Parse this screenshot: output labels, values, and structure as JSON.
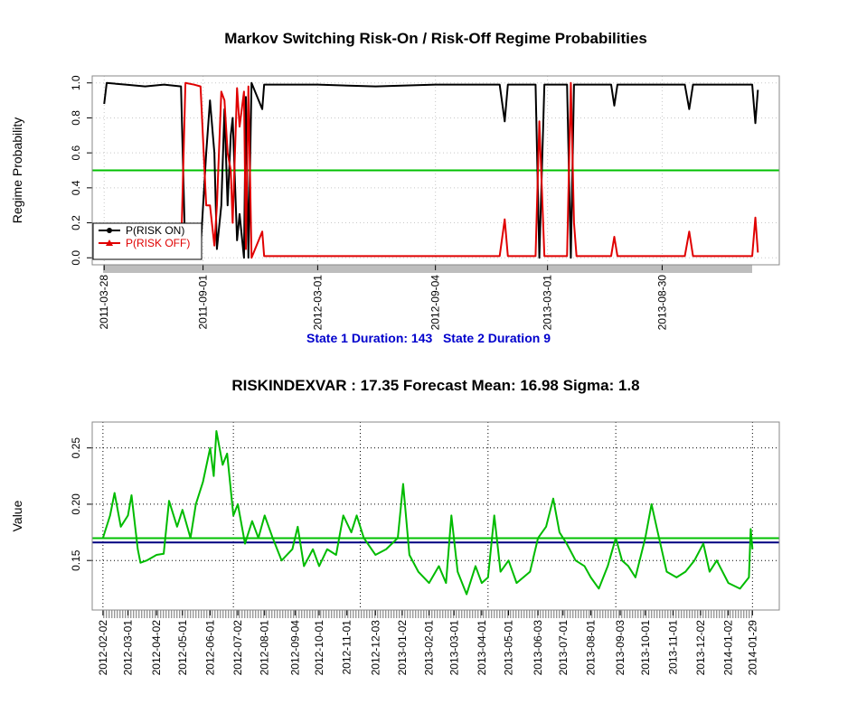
{
  "chart_data": [
    {
      "type": "line",
      "title": "Markov Switching Risk-On / Risk-Off Regime Probabilities",
      "ylabel": "Regime Probability",
      "annotation": "State 1 Duration: 143   State 2 Duration 9",
      "annotation_color": "#0000cc",
      "x": [
        "2011-03-28",
        "2011-04-01",
        "2011-05-01",
        "2011-06-01",
        "2011-07-01",
        "2011-07-28",
        "2011-08-04",
        "2011-08-18",
        "2011-08-28",
        "2011-09-06",
        "2011-09-12",
        "2011-09-19",
        "2011-09-23",
        "2011-09-30",
        "2011-10-05",
        "2011-10-10",
        "2011-10-15",
        "2011-10-18",
        "2011-10-25",
        "2011-10-29",
        "2011-11-05",
        "2011-11-08",
        "2011-11-12",
        "2011-11-17",
        "2011-12-04",
        "2011-12-07",
        "2012-03-01",
        "2012-06-01",
        "2012-09-04",
        "2012-12-15",
        "2012-12-23",
        "2012-12-28",
        "2013-02-10",
        "2013-02-16",
        "2013-02-24",
        "2013-04-01",
        "2013-04-07",
        "2013-04-12",
        "2013-04-16",
        "2013-06-10",
        "2013-06-15",
        "2013-06-20",
        "2013-10-05",
        "2013-10-12",
        "2013-10-18",
        "2014-01-20",
        "2014-01-25",
        "2014-01-29"
      ],
      "series": [
        {
          "name": "P(RISK ON)",
          "color": "#000000",
          "marker": "circle",
          "values": [
            0.88,
            1.0,
            0.99,
            0.98,
            0.99,
            0.98,
            0.0,
            0.02,
            0.05,
            0.6,
            0.9,
            0.6,
            0.05,
            0.3,
            0.85,
            0.3,
            0.7,
            0.8,
            0.1,
            0.25,
            0.0,
            0.92,
            0.0,
            1.0,
            0.85,
            0.99,
            0.99,
            0.98,
            0.99,
            0.99,
            0.78,
            0.99,
            0.99,
            0.0,
            0.99,
            0.99,
            0.0,
            0.99,
            0.99,
            0.99,
            0.87,
            0.99,
            0.99,
            0.85,
            0.99,
            0.99,
            0.77,
            0.96
          ]
        },
        {
          "name": "P(RISK OFF)",
          "color": "#e00000",
          "marker": "triangle",
          "values": [
            0.12,
            0.0,
            0.01,
            0.02,
            0.01,
            0.02,
            1.0,
            0.99,
            0.98,
            0.3,
            0.3,
            0.07,
            0.3,
            0.95,
            0.9,
            0.6,
            0.5,
            0.2,
            0.97,
            0.75,
            0.95,
            0.05,
            0.98,
            0.0,
            0.15,
            0.01,
            0.01,
            0.01,
            0.01,
            0.01,
            0.22,
            0.01,
            0.01,
            0.78,
            0.01,
            0.01,
            1.0,
            0.2,
            0.01,
            0.01,
            0.12,
            0.01,
            0.01,
            0.15,
            0.01,
            0.01,
            0.23,
            0.03
          ]
        }
      ],
      "reference_lines": [
        {
          "value": 0.5,
          "color": "#00c000"
        }
      ],
      "xlim": [
        "2011-03-09",
        "2014-03-04"
      ],
      "xticks": [
        "2011-03-28",
        "2011-09-01",
        "2012-03-01",
        "2012-09-04",
        "2013-03-01",
        "2013-08-30"
      ],
      "ylim": [
        -0.04,
        1.04
      ],
      "yticks": [
        {
          "value": 0,
          "label": "0.0"
        },
        0.2,
        0.4,
        0.6,
        0.8,
        {
          "value": 1,
          "label": "1.0"
        }
      ],
      "grid": true,
      "grid_color": "#c8c8c8",
      "legend": "bottomleft"
    },
    {
      "type": "line",
      "title": "RISKINDEXVAR :  17.35 Forecast Mean: 16.98  Sigma: 1.8",
      "ylabel": "Value",
      "x": [
        "2012-02-02",
        "2012-02-10",
        "2012-02-15",
        "2012-02-22",
        "2012-03-01",
        "2012-03-05",
        "2012-03-12",
        "2012-03-15",
        "2012-03-22",
        "2012-04-02",
        "2012-04-10",
        "2012-04-16",
        "2012-04-25",
        "2012-05-01",
        "2012-05-10",
        "2012-05-16",
        "2012-05-24",
        "2012-06-01",
        "2012-06-05",
        "2012-06-08",
        "2012-06-15",
        "2012-06-20",
        "2012-06-27",
        "2012-07-02",
        "2012-07-10",
        "2012-07-18",
        "2012-07-25",
        "2012-08-01",
        "2012-08-10",
        "2012-08-20",
        "2012-09-01",
        "2012-09-07",
        "2012-09-14",
        "2012-09-24",
        "2012-10-01",
        "2012-10-10",
        "2012-10-20",
        "2012-10-28",
        "2012-11-06",
        "2012-11-12",
        "2012-11-20",
        "2012-12-03",
        "2012-12-15",
        "2012-12-28",
        "2013-01-03",
        "2013-01-10",
        "2013-01-20",
        "2013-02-01",
        "2013-02-12",
        "2013-02-20",
        "2013-02-26",
        "2013-03-05",
        "2013-03-15",
        "2013-03-25",
        "2013-04-01",
        "2013-04-08",
        "2013-04-15",
        "2013-04-22",
        "2013-05-01",
        "2013-05-10",
        "2013-05-25",
        "2013-06-03",
        "2013-06-12",
        "2013-06-20",
        "2013-06-27",
        "2013-07-05",
        "2013-07-15",
        "2013-07-25",
        "2013-08-01",
        "2013-08-10",
        "2013-08-20",
        "2013-08-29",
        "2013-09-05",
        "2013-09-12",
        "2013-09-20",
        "2013-10-01",
        "2013-10-08",
        "2013-10-15",
        "2013-10-25",
        "2013-11-05",
        "2013-11-15",
        "2013-11-25",
        "2013-12-05",
        "2013-12-12",
        "2013-12-20",
        "2014-01-02",
        "2014-01-15",
        "2014-01-25",
        "2014-01-27",
        "2014-01-29"
      ],
      "series": [
        {
          "color": "#00bb00",
          "values": [
            0.17,
            0.19,
            0.21,
            0.18,
            0.19,
            0.208,
            0.16,
            0.148,
            0.15,
            0.155,
            0.156,
            0.203,
            0.18,
            0.195,
            0.17,
            0.2,
            0.22,
            0.25,
            0.225,
            0.265,
            0.235,
            0.245,
            0.19,
            0.2,
            0.165,
            0.185,
            0.17,
            0.19,
            0.17,
            0.15,
            0.16,
            0.18,
            0.145,
            0.16,
            0.145,
            0.16,
            0.155,
            0.19,
            0.175,
            0.19,
            0.17,
            0.155,
            0.16,
            0.17,
            0.218,
            0.155,
            0.14,
            0.13,
            0.145,
            0.13,
            0.19,
            0.14,
            0.12,
            0.145,
            0.13,
            0.135,
            0.19,
            0.14,
            0.15,
            0.13,
            0.14,
            0.17,
            0.18,
            0.205,
            0.175,
            0.165,
            0.15,
            0.145,
            0.135,
            0.125,
            0.145,
            0.17,
            0.15,
            0.145,
            0.135,
            0.17,
            0.2,
            0.175,
            0.14,
            0.135,
            0.14,
            0.15,
            0.165,
            0.14,
            0.15,
            0.13,
            0.125,
            0.135,
            0.178,
            0.16
          ]
        }
      ],
      "reference_lines": [
        {
          "value": 0.1698,
          "color": "#00c000"
        },
        {
          "value": 0.166,
          "color": "#000080"
        }
      ],
      "xlim": [
        "2012-01-21",
        "2014-02-28"
      ],
      "xticks": [
        "2012-02-02",
        "2012-03-01",
        "2012-04-02",
        "2012-05-01",
        "2012-06-01",
        "2012-07-02",
        "2012-08-01",
        "2012-09-04",
        "2012-10-01",
        "2012-11-01",
        "2012-12-03",
        "2013-01-02",
        "2013-02-01",
        "2013-03-01",
        "2013-04-01",
        "2013-05-01",
        "2013-06-03",
        "2013-07-01",
        "2013-08-01",
        "2013-09-03",
        "2013-10-01",
        "2013-11-01",
        "2013-12-02",
        "2014-01-02",
        "2014-01-29"
      ],
      "xgrid": [
        "2012-02-02",
        "2012-06-27",
        "2012-11-16",
        "2013-04-08",
        "2013-08-29",
        "2014-01-29"
      ],
      "ylim": [
        0.106,
        0.273
      ],
      "yticks": [
        0.15,
        {
          "value": 0.2,
          "label": "0.20"
        },
        0.25
      ],
      "grid": true,
      "grid_color": "#000000"
    }
  ]
}
